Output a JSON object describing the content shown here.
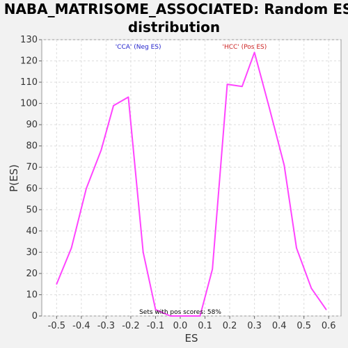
{
  "chart_data": {
    "type": "line",
    "title_lines": [
      "NABA_MATRISOME_ASSOCIATED: Random ES",
      "distribution"
    ],
    "xlabel": "ES",
    "ylabel": "P(ES)",
    "xlim": [
      -0.56,
      0.65
    ],
    "ylim": [
      0,
      130
    ],
    "xticks": [
      -0.5,
      -0.4,
      -0.3,
      -0.2,
      -0.1,
      0.0,
      0.1,
      0.2,
      0.3,
      0.4,
      0.5,
      0.6
    ],
    "xtick_labels": [
      "-0.5",
      "-0.4",
      "-0.3",
      "-0.2",
      "-0.1",
      "0.0",
      "0.1",
      "0.2",
      "0.3",
      "0.4",
      "0.5",
      "0.6"
    ],
    "yticks": [
      0,
      10,
      20,
      30,
      40,
      50,
      60,
      70,
      80,
      90,
      100,
      110,
      120,
      130
    ],
    "ytick_labels": [
      "0",
      "10",
      "20",
      "30",
      "40",
      "50",
      "60",
      "70",
      "80",
      "90",
      "100",
      "110",
      "120",
      "130"
    ],
    "grid": true,
    "series": [
      {
        "color": "#ff44ff",
        "x": [
          -0.5,
          -0.44,
          -0.38,
          -0.32,
          -0.27,
          -0.21,
          -0.15,
          -0.1,
          -0.04,
          0.02,
          0.08,
          0.13,
          0.19,
          0.25,
          0.3,
          0.36,
          0.42,
          0.47,
          0.53,
          0.59
        ],
        "y": [
          15,
          32,
          60,
          78,
          99,
          103,
          30,
          3,
          0,
          0,
          0,
          22,
          109,
          108,
          124,
          98,
          71,
          32,
          13,
          3
        ]
      }
    ],
    "annotations": [
      {
        "text": "'CCA' (Neg ES)",
        "x": -0.17,
        "color": "#2222cc"
      },
      {
        "text": "'HCC' (Pos ES)",
        "x": 0.26,
        "color": "#cc2222"
      }
    ],
    "footnote": "Sets with pos scores: 58%"
  }
}
